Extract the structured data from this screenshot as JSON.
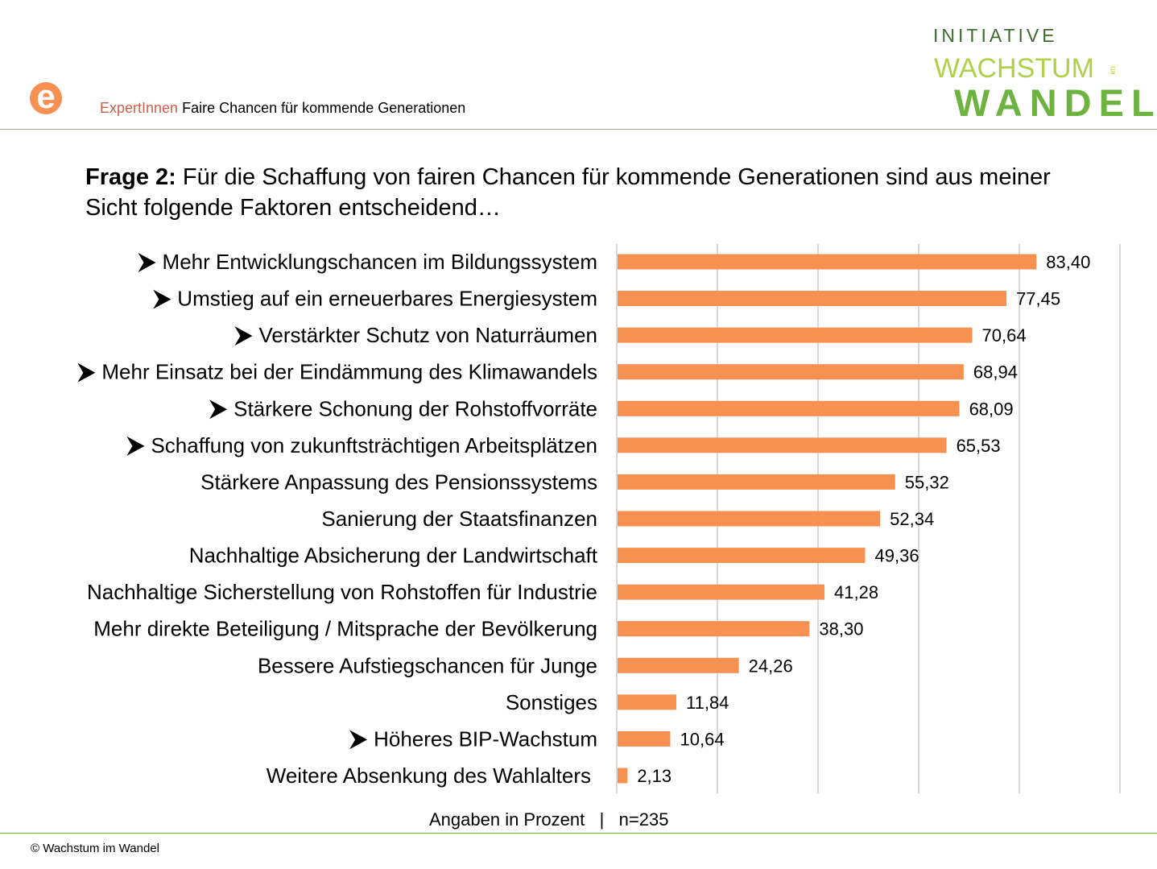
{
  "header": {
    "logo_letter": "e",
    "subtitle_accent": "ExpertInnen",
    "subtitle": "Faire Chancen für kommende Generationen",
    "brand": {
      "line1": "INITIATIVE",
      "line2": "WACHSTUM",
      "small": "im",
      "line3": "WANDEL"
    }
  },
  "title": {
    "bold": "Frage 2:",
    "text": " Für die Schaffung von fairen Chancen für kommende Generationen sind aus meiner Sicht folgende Faktoren entscheidend…"
  },
  "chart_data": {
    "type": "bar",
    "orientation": "horizontal",
    "categories": [
      "Mehr Entwicklungschancen im Bildungssystem",
      "Umstieg auf ein erneuerbares Energiesystem",
      "Verstärkter Schutz von Naturräumen",
      "Mehr Einsatz bei der Eindämmung des Klimawandels",
      "Stärkere Schonung der Rohstoffvorräte",
      "Schaffung von zukunftsträchtigen Arbeitsplätzen",
      "Stärkere Anpassung des Pensionssystems",
      "Sanierung der Staatsfinanzen",
      "Nachhaltige Absicherung der Landwirtschaft",
      "Nachhaltige Sicherstellung von Rohstoffen für Industrie",
      "Mehr direkte Beteiligung / Mitsprache der Bevölkerung",
      "Bessere Aufstiegschancen für Junge",
      "Sonstiges",
      "Höheres BIP-Wachstum",
      "Weitere Absenkung des Wahlalters"
    ],
    "values": [
      83.4,
      77.45,
      70.64,
      68.94,
      68.09,
      65.53,
      55.32,
      52.34,
      49.36,
      41.28,
      38.3,
      24.26,
      11.84,
      10.64,
      2.13
    ],
    "value_labels": [
      "83,40",
      "77,45",
      "70,64",
      "68,94",
      "68,09",
      "65,53",
      "55,32",
      "52,34",
      "49,36",
      "41,28",
      "38,30",
      "24,26",
      "11,84",
      "10,64",
      "2,13"
    ],
    "highlighted_arrow": [
      true,
      true,
      true,
      true,
      true,
      true,
      false,
      false,
      false,
      false,
      false,
      false,
      false,
      true,
      false
    ],
    "xlim": [
      0,
      100
    ],
    "grid_step": 20,
    "grid": true,
    "bar_color": "#f79152"
  },
  "footer": {
    "note": "Angaben in Prozent   |   n=235",
    "copyright": "© Wachstum im Wandel"
  }
}
